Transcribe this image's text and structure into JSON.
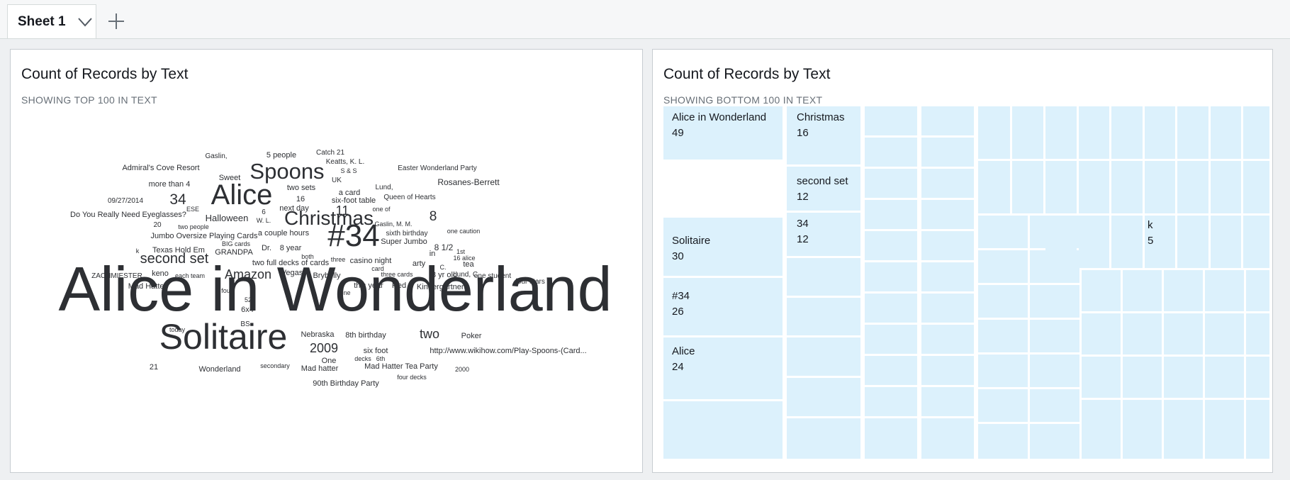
{
  "tabs": {
    "active_label": "Sheet 1",
    "chevron_icon": "chevron-down-icon",
    "add_icon": "plus-icon"
  },
  "left_visual": {
    "title": "Count of Records by Text",
    "subtitle": "SHOWING TOP 100 IN TEXT",
    "words": [
      {
        "text": "Gaslin,"
      },
      {
        "text": "5 people"
      },
      {
        "text": "Catch 21"
      },
      {
        "text": "Keatts, K. L."
      },
      {
        "text": "Admiral's Cove Resort"
      },
      {
        "text": "Easter Wonderland Party"
      },
      {
        "text": "S & S"
      },
      {
        "text": "Sweet"
      },
      {
        "text": "Spoons"
      },
      {
        "text": "UK"
      },
      {
        "text": "more than 4"
      },
      {
        "text": "two sets"
      },
      {
        "text": "Lund,"
      },
      {
        "text": "Rosanes-Berrett"
      },
      {
        "text": "34"
      },
      {
        "text": "Alice"
      },
      {
        "text": "a card"
      },
      {
        "text": "Queen of Hearts"
      },
      {
        "text": "09/27/2014"
      },
      {
        "text": "16"
      },
      {
        "text": "six-foot table"
      },
      {
        "text": "ESE"
      },
      {
        "text": "next day"
      },
      {
        "text": "11"
      },
      {
        "text": "one of"
      },
      {
        "text": "Do You Really Need Eyeglasses?"
      },
      {
        "text": "6"
      },
      {
        "text": "Halloween"
      },
      {
        "text": "W. L."
      },
      {
        "text": "Christmas"
      },
      {
        "text": "8"
      },
      {
        "text": "20"
      },
      {
        "text": "two people"
      },
      {
        "text": "Gaslin, M. M."
      },
      {
        "text": "a couple hours"
      },
      {
        "text": "sixth birthday"
      },
      {
        "text": "one caution"
      },
      {
        "text": "Jumbo Oversize Playing Cards"
      },
      {
        "text": "BIG cards"
      },
      {
        "text": "#34"
      },
      {
        "text": "Super Jumbo"
      },
      {
        "text": "Dr."
      },
      {
        "text": "8 year"
      },
      {
        "text": "8 1/2"
      },
      {
        "text": "1st"
      },
      {
        "text": "k"
      },
      {
        "text": "Texas Hold Em"
      },
      {
        "text": "GRANDPA"
      },
      {
        "text": "in"
      },
      {
        "text": "16 alice"
      },
      {
        "text": "both"
      },
      {
        "text": "three"
      },
      {
        "text": "second set"
      },
      {
        "text": "casino night"
      },
      {
        "text": "two full decks of cards"
      },
      {
        "text": "arty"
      },
      {
        "text": "C."
      },
      {
        "text": "tea"
      },
      {
        "text": "Lund, C."
      },
      {
        "text": "card"
      },
      {
        "text": "keno"
      },
      {
        "text": "Vegas"
      },
      {
        "text": "ZACHMIESTER"
      },
      {
        "text": "each team"
      },
      {
        "text": "Amazon"
      },
      {
        "text": "Brybelly"
      },
      {
        "text": "three cards"
      },
      {
        "text": "8 yr old"
      },
      {
        "text": "one student"
      },
      {
        "text": "four stars"
      },
      {
        "text": "this year"
      },
      {
        "text": "Red"
      },
      {
        "text": "Mad Hatter"
      },
      {
        "text": "four"
      },
      {
        "text": "one"
      },
      {
        "text": "Kindergartners"
      },
      {
        "text": "52"
      },
      {
        "text": "6x4"
      },
      {
        "text": "Alice in Wonderland"
      },
      {
        "text": "BS"
      },
      {
        "text": "today"
      },
      {
        "text": "Solitaire"
      },
      {
        "text": "Nebraska"
      },
      {
        "text": "8th birthday"
      },
      {
        "text": "two"
      },
      {
        "text": "Poker"
      },
      {
        "text": "2009"
      },
      {
        "text": "six foot"
      },
      {
        "text": "http://www.wikihow.com/Play-Spoons-(Card..."
      },
      {
        "text": "decks"
      },
      {
        "text": "6th"
      },
      {
        "text": "One"
      },
      {
        "text": "21"
      },
      {
        "text": "Wonderland"
      },
      {
        "text": "secondary"
      },
      {
        "text": "Mad hatter"
      },
      {
        "text": "Mad Hatter Tea Party"
      },
      {
        "text": "2000"
      },
      {
        "text": "four decks"
      },
      {
        "text": "90th Birthday Party"
      }
    ]
  },
  "right_visual": {
    "title": "Count of Records by Text",
    "subtitle": "SHOWING BOTTOM 100 IN TEXT",
    "tile_color": "#dcf1fc",
    "labeled_cells": [
      {
        "label": "Alice in Wonderland",
        "value": "49"
      },
      {
        "label": "Christmas",
        "value": "16"
      },
      {
        "label": "second set",
        "value": "12"
      },
      {
        "label": "34",
        "value": "12"
      },
      {
        "label": "Solitaire",
        "value": "30"
      },
      {
        "label": "#34",
        "value": "26"
      },
      {
        "label": "Alice",
        "value": "24"
      },
      {
        "label": "k",
        "value": "5"
      }
    ]
  }
}
